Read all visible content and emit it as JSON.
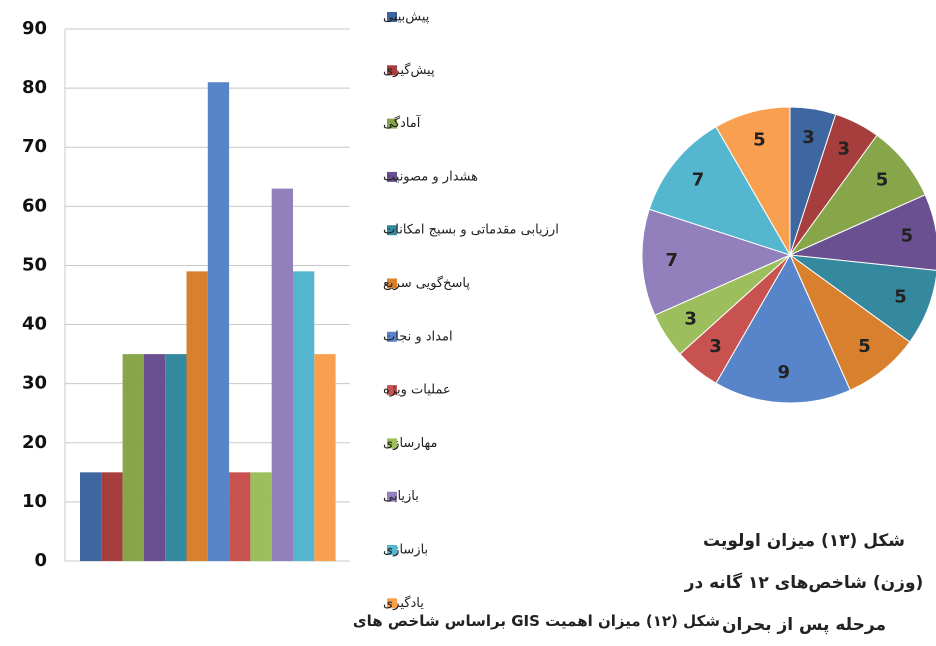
{
  "chart_data": [
    {
      "type": "bar",
      "title": "شکل (۱۲) میزان اهمیت GIS براساس شاخص های",
      "series": [
        {
          "name": "پیش‌بینی",
          "color": "#3e66a0",
          "values": [
            15
          ]
        },
        {
          "name": "پیش‌گیری",
          "color": "#a53e3c",
          "values": [
            15
          ]
        },
        {
          "name": "آمادگی",
          "color": "#87a64a",
          "values": [
            35
          ]
        },
        {
          "name": "هشدار و مصونیت",
          "color": "#6a5090",
          "values": [
            35
          ]
        },
        {
          "name": "ارزیابی مقدماتی و بسیج امکانات",
          "color": "#35899e",
          "values": [
            35
          ]
        },
        {
          "name": "پاسخ‌گویی سریع",
          "color": "#d9802f",
          "values": [
            49
          ]
        },
        {
          "name": "امداد و نجات",
          "color": "#5885c9",
          "values": [
            81
          ]
        },
        {
          "name": "عملیات ویژه",
          "color": "#c85250",
          "values": [
            15
          ]
        },
        {
          "name": "مهارسازی",
          "color": "#9dbe5c",
          "values": [
            15
          ]
        },
        {
          "name": "بازیابی",
          "color": "#9180bb",
          "values": [
            63
          ]
        },
        {
          "name": "بازسازی",
          "color": "#55b6cf",
          "values": [
            49
          ]
        },
        {
          "name": "یادگیری",
          "color": "#f8a050",
          "values": [
            35
          ]
        }
      ],
      "ylim": [
        0,
        90
      ],
      "yticks": [
        0,
        10,
        20,
        30,
        40,
        50,
        60,
        70,
        80,
        90
      ],
      "grid": true
    },
    {
      "type": "pie",
      "title": "شکل (۱۳) میزان اولویت (وزن) شاخص‌های ۱۲ گانه در مرحله پس از بحران",
      "values": [
        3,
        3,
        5,
        5,
        5,
        5,
        9,
        3,
        3,
        7,
        7,
        5
      ],
      "colors": [
        "#3e66a0",
        "#a53e3c",
        "#87a64a",
        "#6a5090",
        "#35899e",
        "#d9802f",
        "#5885c9",
        "#c85250",
        "#9dbe5c",
        "#9180bb",
        "#55b6cf",
        "#f8a050"
      ]
    }
  ]
}
